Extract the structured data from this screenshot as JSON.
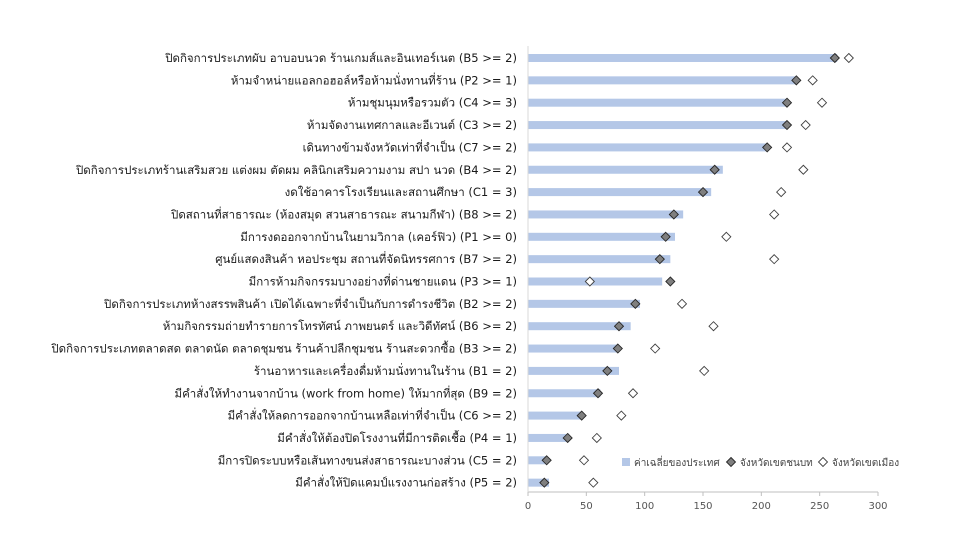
{
  "chart_data": {
    "type": "bar",
    "orientation": "horizontal",
    "title": "",
    "xlabel": "",
    "ylabel": "",
    "xlim": [
      0,
      300
    ],
    "xticks": [
      0,
      50,
      100,
      150,
      200,
      250,
      300
    ],
    "grid": false,
    "legend_position": "bottom-right",
    "categories": [
      "ปิดกิจการประเภทผับ อาบอบนวด ร้านเกมส์และอินเทอร์เนต (B5 >= 2)",
      "ห้ามจำหน่ายแอลกอฮอล์หรือห้ามนั่งทานที่ร้าน (P2 >= 1)",
      "ห้ามชุมนุมหรือรวมตัว (C4 >= 3)",
      "ห้ามจัดงานเทศกาลและอีเวนต์ (C3 >= 2)",
      "เดินทางข้ามจังหวัดเท่าที่จำเป็น (C7 >= 2)",
      "ปิดกิจการประเภทร้านเสริมสวย แต่งผม ตัดผม คลินิกเสริมความงาม สปา นวด (B4 >= 2)",
      "งดใช้อาคารโรงเรียนและสถานศึกษา (C1 = 3)",
      "ปิดสถานที่สาธารณะ (ห้องสมุด สวนสาธารณะ สนามกีฬา) (B8 >= 2)",
      "มีการงดออกจากบ้านในยามวิกาล (เคอร์ฟิว) (P1 >= 0)",
      "ศูนย์แสดงสินค้า หอประชุม สถานที่จัดนิทรรศการ (B7 >= 2)",
      "มีการห้ามกิจกรรมบางอย่างที่ด่านชายแดน (P3 >= 1)",
      "ปิดกิจการประเภทห้างสรรพสินค้า เปิดได้เฉพาะที่จำเป็นกับการดำรงชีวิต (B2 >= 2)",
      "ห้ามกิจกรรมถ่ายทำรายการโทรทัศน์ ภาพยนตร์ และวิดีทัศน์ (B6 >= 2)",
      "ปิดกิจการประเภทตลาดสด ตลาดนัด ตลาดชุมชน ร้านค้าปลีกชุมชน ร้านสะดวกซื้อ (B3 >= 2)",
      "ร้านอาหารและเครื่องดื่มห้ามนั่งทานในร้าน (B1 = 2)",
      "มีคำสั่งให้ทำงานจากบ้าน (work from home) ให้มากที่สุด (B9 = 2)",
      "มีคำสั่งให้ลดการออกจากบ้านเหลือเท่าที่จำเป็น (C6 >= 2)",
      "มีคำสั่งให้ต้องปิดโรงงานที่มีการติดเชื้อ (P4 = 1)",
      "มีการปิดระบบหรือเส้นทางขนส่งสาธารณะบางส่วน (C5 = 2)",
      "มีคำสั่งให้ปิดแคมป์แรงงานก่อสร้าง (P5 = 2)"
    ],
    "series": [
      {
        "name": "ค่าเฉลี่ยของประเทศ",
        "mark": "bar",
        "color": "#b4c7e7",
        "values": [
          265,
          230,
          222,
          222,
          205,
          167,
          157,
          133,
          126,
          122,
          115,
          96,
          88,
          78,
          78,
          62,
          47,
          35,
          16,
          18
        ]
      },
      {
        "name": "จังหวัดเขตชนบท",
        "mark": "diamond-filled",
        "color": "#7f7f7f",
        "values": [
          263,
          230,
          222,
          222,
          205,
          160,
          150,
          125,
          118,
          113,
          122,
          92,
          78,
          77,
          68,
          60,
          46,
          34,
          16,
          14
        ]
      },
      {
        "name": "จังหวัดเขตเมือง",
        "mark": "diamond-open",
        "color": "#ffffff",
        "values": [
          275,
          244,
          252,
          238,
          222,
          236,
          217,
          211,
          170,
          211,
          53,
          132,
          159,
          109,
          151,
          90,
          80,
          59,
          48,
          56
        ]
      }
    ]
  }
}
